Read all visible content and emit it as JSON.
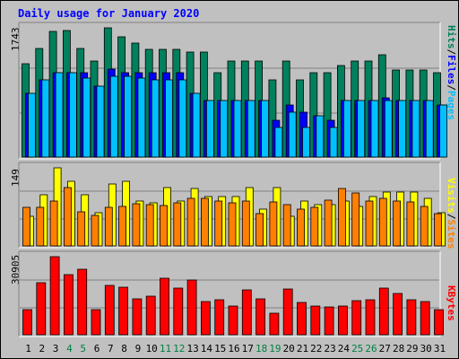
{
  "title": "Daily usage for January 2020",
  "colors": {
    "hits": "#00805c",
    "files": "#0000ff",
    "pages": "#00c0ff",
    "visits": "#ffff00",
    "sites": "#ff8000",
    "kbytes": "#ff0000",
    "weekend_label": "#008040",
    "panel_bg": "#c0c0c0"
  },
  "legends": {
    "top": [
      {
        "text": "Hits",
        "color": "#00805c"
      },
      {
        "text": "/",
        "color": "#000000"
      },
      {
        "text": "Files",
        "color": "#0000ff"
      },
      {
        "text": "/",
        "color": "#000000"
      },
      {
        "text": "Pages",
        "color": "#00c0ff"
      }
    ],
    "middle": [
      {
        "text": "Visits",
        "color": "#ffff00"
      },
      {
        "text": "/",
        "color": "#000000"
      },
      {
        "text": "Sites",
        "color": "#ff8000"
      }
    ],
    "bottom": [
      {
        "text": "KBytes",
        "color": "#ff0000"
      }
    ]
  },
  "chart_data": {
    "type": "bar",
    "title": "Daily usage for January 2020",
    "categories": [
      "1",
      "2",
      "3",
      "4",
      "5",
      "6",
      "7",
      "8",
      "9",
      "10",
      "11",
      "12",
      "13",
      "14",
      "15",
      "16",
      "17",
      "18",
      "19",
      "20",
      "21",
      "22",
      "23",
      "24",
      "25",
      "26",
      "27",
      "28",
      "29",
      "30",
      "31"
    ],
    "weekend_days": [
      "4",
      "5",
      "11",
      "12",
      "18",
      "19",
      "25",
      "26"
    ],
    "panels": [
      {
        "name": "hits-files-pages",
        "max_label": "1743",
        "ylim": [
          0,
          1743
        ],
        "series": [
          {
            "name": "Hits",
            "values": [
              1262,
              1465,
              1696,
              1705,
              1465,
              1290,
              1743,
              1621,
              1542,
              1452,
              1452,
              1452,
              1420,
              1420,
              1142,
              1290,
              1290,
              1290,
              1040,
              1290,
              1040,
              1142,
              1142,
              1240,
              1290,
              1290,
              1380,
              1180,
              1180,
              1180,
              1142
            ]
          },
          {
            "name": "Files",
            "values": [
              862,
              1040,
              1143,
              1142,
              1142,
              960,
              1190,
              1142,
              1142,
              1142,
              1142,
              1142,
              862,
              760,
              762,
              762,
              762,
              760,
              500,
              700,
              600,
              560,
              500,
              760,
              760,
              760,
              800,
              760,
              760,
              760,
              700
            ]
          },
          {
            "name": "Pages",
            "values": [
              862,
              1040,
              1143,
              1142,
              1060,
              960,
              1094,
              1094,
              1060,
              1040,
              1040,
              1040,
              862,
              760,
              762,
              762,
              762,
              760,
              400,
              600,
              400,
              560,
              400,
              760,
              760,
              760,
              760,
              760,
              760,
              760,
              700
            ]
          }
        ]
      },
      {
        "name": "visits-sites",
        "max_label": "149",
        "ylim": [
          0,
          149
        ],
        "series": [
          {
            "name": "Visits",
            "values": [
              56,
              98,
              149,
              123,
              98,
              64,
              119,
              123,
              85,
              83,
              112,
              86,
              109,
              94,
              94,
              94,
              112,
              70,
              112,
              56,
              85,
              79,
              79,
              85,
              75,
              94,
              103,
              103,
              103,
              90,
              64
            ]
          },
          {
            "name": "Sites",
            "values": [
              74,
              74,
              85,
              111,
              65,
              59,
              74,
              75,
              80,
              79,
              77,
              83,
              90,
              90,
              86,
              83,
              85,
              61,
              84,
              79,
              70,
              74,
              88,
              110,
              101,
              85,
              90,
              85,
              84,
              75,
              62
            ]
          }
        ]
      },
      {
        "name": "kbytes",
        "max_label": "30905",
        "ylim": [
          0,
          30905
        ],
        "series": [
          {
            "name": "KBytes",
            "values": [
              9800,
              20500,
              30905,
              23800,
              26000,
              10000,
              19600,
              18700,
              14200,
              15100,
              22400,
              18400,
              21700,
              13100,
              13800,
              11200,
              17900,
              14200,
              8700,
              18100,
              12900,
              11300,
              10900,
              11200,
              13500,
              13700,
              18300,
              16200,
              14000,
              13300,
              10100
            ]
          }
        ]
      }
    ]
  }
}
